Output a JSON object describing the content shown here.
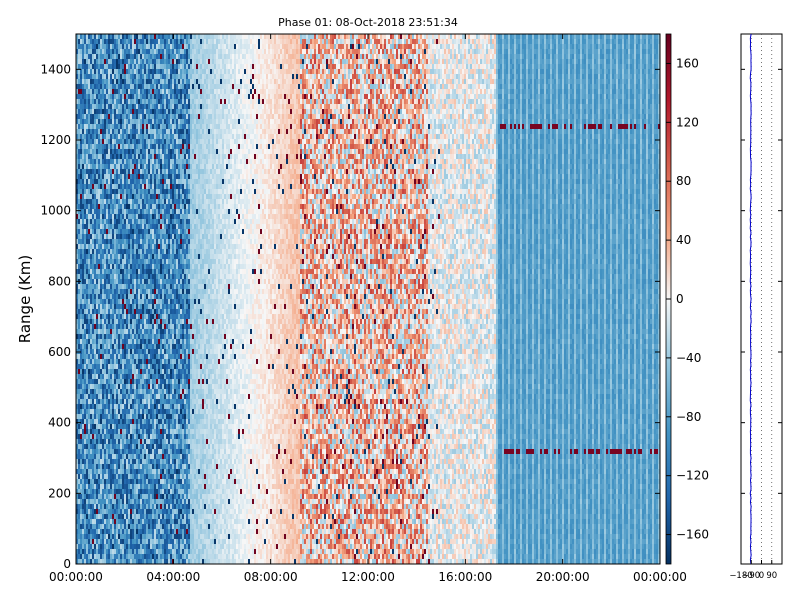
{
  "chart_data": {
    "type": "heatmap",
    "title": "Phase 01: 08-Oct-2018 23:51:34",
    "ylabel": "Range (Km)",
    "xlabel": "",
    "x_range": [
      "00:00:00",
      "24:00:00"
    ],
    "ylim": [
      0,
      1500
    ],
    "x_ticks": [
      "00:00:00",
      "04:00:00",
      "08:00:00",
      "12:00:00",
      "16:00:00",
      "20:00:00",
      "00:00:00"
    ],
    "y_ticks": [
      0,
      200,
      400,
      600,
      800,
      1000,
      1200,
      1400
    ],
    "colorbar": {
      "colormap": "RdBu_r",
      "range": [
        -180,
        180
      ],
      "ticks": [
        -160,
        -120,
        -80,
        -40,
        0,
        40,
        80,
        120,
        160
      ],
      "colors": {
        "low": "#053061",
        "mid": "#f7f7f7",
        "high": "#67001f"
      }
    },
    "phase_profile": [
      {
        "period": "00:00-04:40",
        "mean_phase": -95
      },
      {
        "period": "04:40-09:10",
        "mean_phase": -40
      },
      {
        "period": "09:10-14:30",
        "mean_phase": 30
      },
      {
        "period": "14:30-17:20",
        "mean_phase": -5
      },
      {
        "period": "17:20-24:00",
        "mean_phase": -85
      }
    ],
    "highlighted_rows_km": [
      320,
      1240
    ],
    "side_panel": {
      "x_ticks": [
        "−180",
        "−90",
        "0",
        "90"
      ],
      "xlim": [
        -180,
        180
      ],
      "line_color": "#0000cc"
    }
  }
}
